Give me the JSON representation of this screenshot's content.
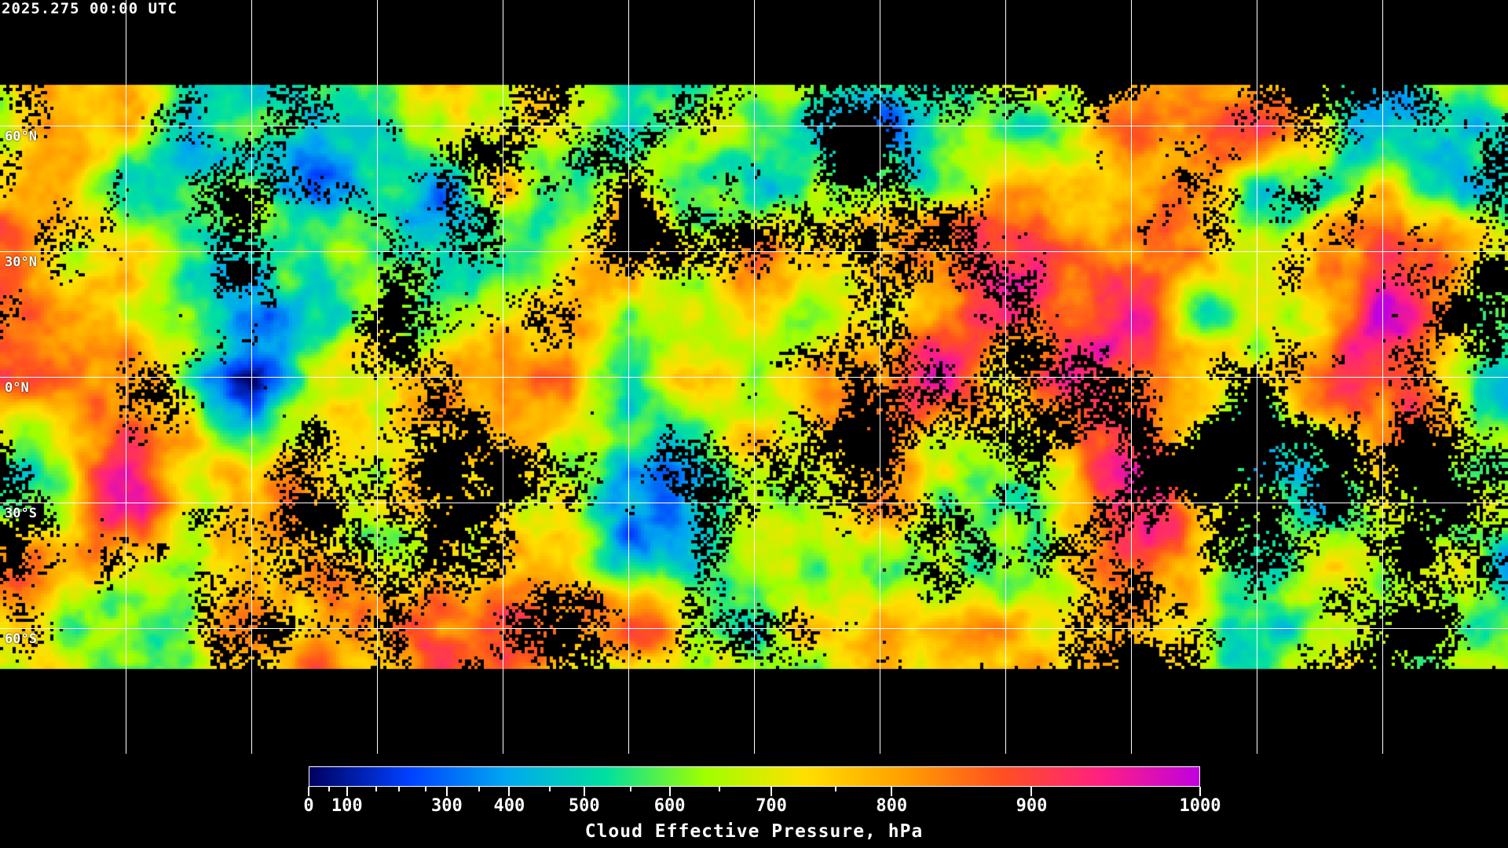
{
  "header": {
    "timestamp": "2025.275 00:00 UTC"
  },
  "map": {
    "projection": "equirectangular",
    "lat_labels": [
      "60°N",
      "30°N",
      "0°N",
      "30°S",
      "60°S"
    ],
    "gridline_color": "#ffffff",
    "coastline_color": "#ffffff",
    "no_data_color": "#000000"
  },
  "colorbar": {
    "title": "Cloud Effective Pressure, hPa",
    "range": [
      0,
      1000
    ],
    "tick_labels": [
      "0",
      "100",
      "300",
      "400",
      "500",
      "600",
      "700",
      "800",
      "900",
      "1000"
    ],
    "colors": [
      "#000060",
      "#0040ff",
      "#00a8f0",
      "#00e0a0",
      "#a0ff00",
      "#ffe000",
      "#ffa000",
      "#ff5020",
      "#ff2080",
      "#c000e0"
    ]
  }
}
